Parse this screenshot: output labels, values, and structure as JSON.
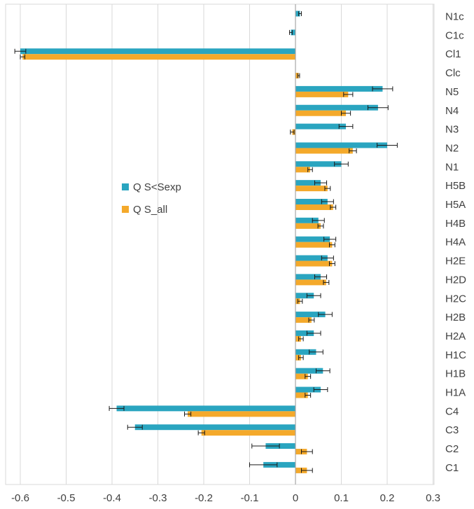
{
  "chart_data": {
    "type": "bar",
    "orientation": "horizontal",
    "categories": [
      "N1c",
      "C1c",
      "Cl1",
      "Clc",
      "N5",
      "N4",
      "N3",
      "N2",
      "N1",
      "H5B",
      "H5A",
      "H4B",
      "H4A",
      "H2E",
      "H2D",
      "H2C",
      "H2B",
      "H2A",
      "H1C",
      "H1B",
      "H1A",
      "C4",
      "C3",
      "C2",
      "C1"
    ],
    "series": [
      {
        "name": "Q S<Sexp",
        "color": "#2aa5c0",
        "values": [
          0.01,
          -0.01,
          -0.6,
          0.0,
          0.19,
          0.18,
          0.11,
          0.2,
          0.1,
          0.055,
          0.07,
          0.05,
          0.075,
          0.07,
          0.055,
          0.04,
          0.065,
          0.04,
          0.045,
          0.06,
          0.055,
          -0.39,
          -0.35,
          -0.065,
          -0.07
        ],
        "errors": [
          0.003,
          0.003,
          0.012,
          0.0,
          0.022,
          0.022,
          0.015,
          0.022,
          0.015,
          0.013,
          0.013,
          0.013,
          0.013,
          0.013,
          0.013,
          0.015,
          0.015,
          0.015,
          0.015,
          0.015,
          0.015,
          0.016,
          0.016,
          0.03,
          0.03
        ]
      },
      {
        "name": "Q S_all",
        "color": "#f4a92b",
        "values": [
          0.0,
          0.0,
          -0.595,
          0.007,
          0.115,
          0.11,
          -0.007,
          0.125,
          0.032,
          0.07,
          0.082,
          0.055,
          0.08,
          0.08,
          0.067,
          0.01,
          0.035,
          0.012,
          0.012,
          0.027,
          0.027,
          -0.235,
          -0.205,
          0.025,
          0.025
        ],
        "errors": [
          0.0,
          0.0,
          0.005,
          0.002,
          0.01,
          0.01,
          0.004,
          0.008,
          0.005,
          0.006,
          0.006,
          0.006,
          0.006,
          0.006,
          0.006,
          0.005,
          0.006,
          0.005,
          0.005,
          0.006,
          0.006,
          0.007,
          0.007,
          0.012,
          0.012
        ]
      }
    ],
    "xlim": [
      -0.65,
      0.3
    ],
    "xticks": [
      "-0.6",
      "-0.5",
      "-0.4",
      "-0.3",
      "-0.2",
      "-0.1",
      "0",
      "0.1",
      "0.2",
      "0.3"
    ],
    "xtick_values": [
      -0.6,
      -0.5,
      -0.4,
      -0.3,
      -0.2,
      -0.1,
      0,
      0.1,
      0.2,
      0.3
    ],
    "grid": "vertical",
    "legend_position": "left-middle",
    "title": "",
    "xlabel": "",
    "ylabel": ""
  }
}
